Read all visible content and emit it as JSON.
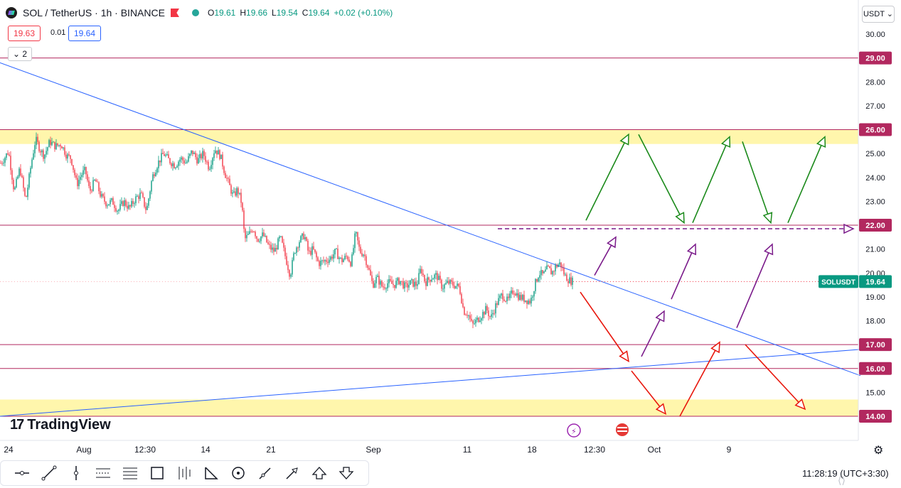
{
  "header": {
    "symbol": "SOL / TetherUS · 1h · BINANCE",
    "open_label": "O",
    "open": "19.61",
    "high_label": "H",
    "high": "19.66",
    "low_label": "L",
    "low": "19.54",
    "close_label": "C",
    "close": "19.64",
    "change": "+0.02 (+0.10%)"
  },
  "trade": {
    "sell_price": "19.63",
    "spread": "0.01",
    "buy_price": "19.64"
  },
  "indicators_toggle": "2",
  "currency_select": "USDT",
  "brand": "TradingView",
  "clock": "11:28:19 (UTC+3:30)",
  "colors": {
    "up": "#089981",
    "down": "#f23645",
    "level_line": "#b2285f",
    "zone_fill": "#fff59d",
    "trend_line": "#2962ff",
    "arrow_green": "#1b8a1b",
    "arrow_red": "#e8160c",
    "arrow_purple": "#7a1a8a"
  },
  "chart_data": {
    "type": "candlestick",
    "symbol": "SOLUSDT",
    "timeframe": "1h",
    "current_price": 19.64,
    "current_price_label": "SOLUSDT",
    "current_price_text": "19.64",
    "y_ticks": [
      "30.00",
      "28.00",
      "27.00",
      "25.00",
      "24.00",
      "23.00",
      "21.00",
      "20.00",
      "19.00",
      "18.00",
      "15.00"
    ],
    "x_ticks": [
      "24",
      "Aug",
      "12:30",
      "14",
      "21",
      "Sep",
      "11",
      "18",
      "12:30",
      "Oct",
      "9"
    ],
    "ylim": [
      13.9,
      30.6
    ],
    "levels": [
      {
        "value": 29.0,
        "label": "29.00"
      },
      {
        "value": 26.0,
        "label": "26.00"
      },
      {
        "value": 22.0,
        "label": "22.00"
      },
      {
        "value": 17.0,
        "label": "17.00"
      },
      {
        "value": 16.0,
        "label": "16.00"
      },
      {
        "value": 14.0,
        "label": "14.00"
      }
    ],
    "zones": [
      {
        "from": 25.4,
        "to": 26.0
      },
      {
        "from": 14.0,
        "to": 14.7
      }
    ],
    "price_path": [
      [
        1,
        24.6
      ],
      [
        6,
        24.8
      ],
      [
        12,
        25.1
      ],
      [
        20,
        23.4
      ],
      [
        28,
        24.4
      ],
      [
        36,
        23.0
      ],
      [
        44,
        24.6
      ],
      [
        50,
        25.6
      ],
      [
        56,
        25.2
      ],
      [
        62,
        24.9
      ],
      [
        70,
        25.5
      ],
      [
        78,
        25.3
      ],
      [
        86,
        25.4
      ],
      [
        94,
        24.9
      ],
      [
        100,
        24.8
      ],
      [
        108,
        23.7
      ],
      [
        114,
        24.1
      ],
      [
        120,
        24.3
      ],
      [
        126,
        23.4
      ],
      [
        134,
        23.9
      ],
      [
        142,
        23.2
      ],
      [
        150,
        22.9
      ],
      [
        158,
        23.0
      ],
      [
        166,
        22.6
      ],
      [
        174,
        23.0
      ],
      [
        182,
        22.7
      ],
      [
        190,
        23.1
      ],
      [
        198,
        23.3
      ],
      [
        206,
        22.6
      ],
      [
        214,
        24.0
      ],
      [
        222,
        24.6
      ],
      [
        230,
        25.0
      ],
      [
        238,
        24.7
      ],
      [
        246,
        24.5
      ],
      [
        254,
        24.8
      ],
      [
        262,
        24.6
      ],
      [
        270,
        25.1
      ],
      [
        278,
        24.7
      ],
      [
        286,
        25.0
      ],
      [
        294,
        24.4
      ],
      [
        302,
        25.2
      ],
      [
        310,
        24.9
      ],
      [
        316,
        24.2
      ],
      [
        322,
        23.7
      ],
      [
        328,
        23.2
      ],
      [
        334,
        23.5
      ],
      [
        340,
        22.9
      ],
      [
        344,
        21.4
      ],
      [
        350,
        21.6
      ],
      [
        356,
        21.9
      ],
      [
        362,
        21.4
      ],
      [
        370,
        21.6
      ],
      [
        378,
        21.1
      ],
      [
        386,
        20.9
      ],
      [
        394,
        21.5
      ],
      [
        402,
        20.6
      ],
      [
        408,
        19.9
      ],
      [
        414,
        20.9
      ],
      [
        420,
        21.3
      ],
      [
        428,
        21.6
      ],
      [
        434,
        20.8
      ],
      [
        440,
        21.0
      ],
      [
        448,
        20.4
      ],
      [
        456,
        20.5
      ],
      [
        464,
        20.6
      ],
      [
        472,
        20.9
      ],
      [
        480,
        20.5
      ],
      [
        488,
        20.7
      ],
      [
        494,
        20.4
      ],
      [
        500,
        21.7
      ],
      [
        506,
        20.9
      ],
      [
        512,
        20.8
      ],
      [
        518,
        20.2
      ],
      [
        524,
        19.5
      ],
      [
        530,
        19.8
      ],
      [
        538,
        19.4
      ],
      [
        546,
        19.6
      ],
      [
        554,
        19.5
      ],
      [
        562,
        19.7
      ],
      [
        570,
        19.4
      ],
      [
        578,
        19.6
      ],
      [
        586,
        19.5
      ],
      [
        592,
        20.2
      ],
      [
        598,
        19.6
      ],
      [
        606,
        19.8
      ],
      [
        614,
        19.9
      ],
      [
        622,
        19.4
      ],
      [
        630,
        19.6
      ],
      [
        638,
        19.5
      ],
      [
        646,
        19.4
      ],
      [
        652,
        18.4
      ],
      [
        658,
        18.3
      ],
      [
        664,
        17.8
      ],
      [
        670,
        18.0
      ],
      [
        676,
        18.2
      ],
      [
        684,
        18.5
      ],
      [
        690,
        18.1
      ],
      [
        698,
        18.7
      ],
      [
        706,
        19.1
      ],
      [
        714,
        18.8
      ],
      [
        722,
        19.3
      ],
      [
        730,
        19.0
      ],
      [
        738,
        18.9
      ],
      [
        746,
        18.8
      ],
      [
        752,
        19.5
      ],
      [
        758,
        20.0
      ],
      [
        764,
        19.9
      ],
      [
        770,
        20.2
      ],
      [
        776,
        20.0
      ],
      [
        782,
        20.3
      ],
      [
        788,
        20.4
      ],
      [
        794,
        19.9
      ],
      [
        800,
        19.7
      ],
      [
        806,
        19.64
      ]
    ],
    "trend_lines": [
      {
        "name": "descending",
        "points": [
          [
            0,
            28.8
          ],
          [
            1210,
            15.7
          ]
        ]
      },
      {
        "name": "ascending",
        "points": [
          [
            0,
            14.0
          ],
          [
            1210,
            16.8
          ]
        ]
      }
    ],
    "projection_dashed": {
      "value": 21.85,
      "from_x": 700,
      "to_x": 1200
    },
    "arrows": [
      {
        "color": "green",
        "from": [
          824,
          22.2
        ],
        "to": [
          884,
          25.8
        ]
      },
      {
        "color": "green",
        "from": [
          898,
          25.8
        ],
        "to": [
          962,
          22.1
        ]
      },
      {
        "color": "green",
        "from": [
          974,
          22.1
        ],
        "to": [
          1026,
          25.7
        ]
      },
      {
        "color": "green",
        "from": [
          1044,
          25.5
        ],
        "to": [
          1084,
          22.1
        ]
      },
      {
        "color": "green",
        "from": [
          1108,
          22.1
        ],
        "to": [
          1160,
          25.7
        ]
      },
      {
        "color": "purple",
        "from": [
          836,
          19.9
        ],
        "to": [
          866,
          21.5
        ]
      },
      {
        "color": "purple",
        "from": [
          944,
          18.9
        ],
        "to": [
          978,
          21.2
        ]
      },
      {
        "color": "purple",
        "from": [
          902,
          16.5
        ],
        "to": [
          934,
          18.4
        ]
      },
      {
        "color": "purple",
        "from": [
          1036,
          17.7
        ],
        "to": [
          1086,
          21.2
        ]
      },
      {
        "color": "red",
        "from": [
          816,
          19.2
        ],
        "to": [
          884,
          16.3
        ]
      },
      {
        "color": "red",
        "from": [
          888,
          15.9
        ],
        "to": [
          936,
          14.1
        ]
      },
      {
        "color": "red",
        "from": [
          956,
          14.0
        ],
        "to": [
          1012,
          17.1
        ]
      },
      {
        "color": "red",
        "from": [
          1048,
          17.0
        ],
        "to": [
          1132,
          14.3
        ]
      }
    ]
  }
}
